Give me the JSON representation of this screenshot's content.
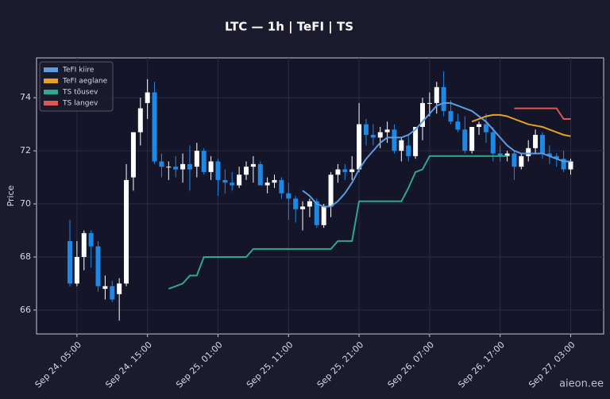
{
  "chart_data": {
    "type": "candlestick",
    "title": "LTC — 1h  |  TeFI  |  TS",
    "ylabel": "Price",
    "watermark": "aieon.ee",
    "up_color": "#ffffff",
    "down_color": "#1e88e5",
    "grid": true,
    "legend": "upper left",
    "x": [
      "Sep 24, 04:00",
      "Sep 24, 05:00",
      "Sep 24, 06:00",
      "Sep 24, 07:00",
      "Sep 24, 08:00",
      "Sep 24, 09:00",
      "Sep 24, 10:00",
      "Sep 24, 11:00",
      "Sep 24, 12:00",
      "Sep 24, 13:00",
      "Sep 24, 14:00",
      "Sep 24, 15:00",
      "Sep 24, 16:00",
      "Sep 24, 17:00",
      "Sep 24, 18:00",
      "Sep 24, 19:00",
      "Sep 24, 20:00",
      "Sep 24, 21:00",
      "Sep 24, 22:00",
      "Sep 24, 23:00",
      "Sep 25, 00:00",
      "Sep 25, 01:00",
      "Sep 25, 02:00",
      "Sep 25, 03:00",
      "Sep 25, 04:00",
      "Sep 25, 05:00",
      "Sep 25, 06:00",
      "Sep 25, 07:00",
      "Sep 25, 08:00",
      "Sep 25, 09:00",
      "Sep 25, 10:00",
      "Sep 25, 11:00",
      "Sep 25, 12:00",
      "Sep 25, 13:00",
      "Sep 25, 14:00",
      "Sep 25, 15:00",
      "Sep 25, 16:00",
      "Sep 25, 17:00",
      "Sep 25, 18:00",
      "Sep 25, 19:00",
      "Sep 25, 20:00",
      "Sep 25, 21:00",
      "Sep 25, 22:00",
      "Sep 25, 23:00",
      "Sep 26, 00:00",
      "Sep 26, 01:00",
      "Sep 26, 02:00",
      "Sep 26, 03:00",
      "Sep 26, 04:00",
      "Sep 26, 05:00",
      "Sep 26, 06:00",
      "Sep 26, 07:00",
      "Sep 26, 08:00",
      "Sep 26, 09:00",
      "Sep 26, 10:00",
      "Sep 26, 11:00",
      "Sep 26, 12:00",
      "Sep 26, 13:00",
      "Sep 26, 14:00",
      "Sep 26, 15:00",
      "Sep 26, 16:00",
      "Sep 26, 17:00",
      "Sep 26, 18:00",
      "Sep 26, 19:00",
      "Sep 26, 20:00",
      "Sep 26, 21:00",
      "Sep 26, 22:00",
      "Sep 26, 23:00",
      "Sep 27, 00:00",
      "Sep 27, 01:00",
      "Sep 27, 02:00",
      "Sep 27, 03:00"
    ],
    "open": [
      68.6,
      67.0,
      68.0,
      68.9,
      68.4,
      66.8,
      66.9,
      66.6,
      67.0,
      71.0,
      72.7,
      73.8,
      74.2,
      71.6,
      71.4,
      71.4,
      71.3,
      71.5,
      71.4,
      72.0,
      71.2,
      71.6,
      70.9,
      70.8,
      70.7,
      71.1,
      71.4,
      71.5,
      70.7,
      70.8,
      70.9,
      70.4,
      70.2,
      69.8,
      69.9,
      70.1,
      69.2,
      69.9,
      71.1,
      71.3,
      71.2,
      71.3,
      73.0,
      72.6,
      72.5,
      72.7,
      72.8,
      72.0,
      72.2,
      71.8,
      72.9,
      73.8,
      73.8,
      74.4,
      73.5,
      73.1,
      72.8,
      72.0,
      72.9,
      73.0,
      72.7,
      71.9,
      71.8,
      71.9,
      71.4,
      71.8,
      72.1,
      72.6,
      71.9,
      71.8,
      71.7,
      71.3
    ],
    "high": [
      69.4,
      68.6,
      69.0,
      69.0,
      68.6,
      67.3,
      67.1,
      67.2,
      71.5,
      72.7,
      74.0,
      74.7,
      74.6,
      71.9,
      71.6,
      71.8,
      71.9,
      72.2,
      72.3,
      72.1,
      71.8,
      71.7,
      71.3,
      71.2,
      71.4,
      71.6,
      71.8,
      71.6,
      71.0,
      71.1,
      71.0,
      70.8,
      70.3,
      70.1,
      70.2,
      70.2,
      70.0,
      71.2,
      71.5,
      71.5,
      71.8,
      73.8,
      73.2,
      73.0,
      72.9,
      73.1,
      73.0,
      72.5,
      72.6,
      72.9,
      74.0,
      74.2,
      74.6,
      75.0,
      73.9,
      73.4,
      73.3,
      72.9,
      73.1,
      73.4,
      72.9,
      72.2,
      72.0,
      72.0,
      71.9,
      72.4,
      72.8,
      72.7,
      72.2,
      71.9,
      72.0,
      71.7
    ],
    "low": [
      66.9,
      66.9,
      67.5,
      67.6,
      66.7,
      66.4,
      66.3,
      65.6,
      66.9,
      70.5,
      72.2,
      73.2,
      71.5,
      71.0,
      70.9,
      71.0,
      70.8,
      70.5,
      71.0,
      71.1,
      70.9,
      70.3,
      70.4,
      70.5,
      70.6,
      70.9,
      70.8,
      70.7,
      70.4,
      70.6,
      70.2,
      69.4,
      69.3,
      69.0,
      69.5,
      69.1,
      69.1,
      69.5,
      70.8,
      70.9,
      70.9,
      71.2,
      72.2,
      72.2,
      72.1,
      72.3,
      71.9,
      71.6,
      71.6,
      71.7,
      72.4,
      73.3,
      73.4,
      73.3,
      73.0,
      72.7,
      71.9,
      71.9,
      72.6,
      72.3,
      71.6,
      71.6,
      71.6,
      70.9,
      71.3,
      71.6,
      71.9,
      71.7,
      71.5,
      71.4,
      71.2,
      71.1
    ],
    "close": [
      67.0,
      68.0,
      68.9,
      68.4,
      66.9,
      66.9,
      66.4,
      67.0,
      70.9,
      72.7,
      73.6,
      74.2,
      71.6,
      71.4,
      71.4,
      71.3,
      71.5,
      71.3,
      72.0,
      71.2,
      71.6,
      70.9,
      70.8,
      70.7,
      71.1,
      71.4,
      71.5,
      70.7,
      70.8,
      70.9,
      70.4,
      70.2,
      69.8,
      69.9,
      70.1,
      69.2,
      69.9,
      71.1,
      71.3,
      71.2,
      71.3,
      73.0,
      72.6,
      72.5,
      72.7,
      72.8,
      72.0,
      72.4,
      71.8,
      72.9,
      73.8,
      73.8,
      74.4,
      73.5,
      73.1,
      72.8,
      72.0,
      72.9,
      73.0,
      72.7,
      71.9,
      71.8,
      71.9,
      71.4,
      71.8,
      72.1,
      72.6,
      71.9,
      71.8,
      71.7,
      71.3,
      71.6
    ],
    "series": [
      {
        "name": "TeFI kiire",
        "color": "#5b9be0",
        "values": [
          null,
          null,
          null,
          null,
          null,
          null,
          null,
          null,
          null,
          null,
          null,
          null,
          null,
          null,
          null,
          null,
          null,
          null,
          null,
          null,
          null,
          null,
          null,
          null,
          null,
          null,
          null,
          null,
          null,
          null,
          null,
          null,
          null,
          70.5,
          70.3,
          70.0,
          69.9,
          69.9,
          70.1,
          70.4,
          70.8,
          71.3,
          71.7,
          72.0,
          72.3,
          72.5,
          72.5,
          72.5,
          72.6,
          72.8,
          73.1,
          73.4,
          73.7,
          73.8,
          73.8,
          73.7,
          73.6,
          73.5,
          73.3,
          73.1,
          72.8,
          72.5,
          72.2,
          72.0,
          71.9,
          71.9,
          71.9,
          71.9,
          71.8,
          71.7,
          71.6,
          71.6
        ]
      },
      {
        "name": "TeFI aeglane",
        "color": "#e6a126",
        "values": [
          null,
          null,
          null,
          null,
          null,
          null,
          null,
          null,
          null,
          null,
          null,
          null,
          null,
          null,
          null,
          null,
          null,
          null,
          null,
          null,
          null,
          null,
          null,
          null,
          null,
          null,
          null,
          null,
          null,
          null,
          null,
          null,
          null,
          null,
          null,
          null,
          null,
          null,
          null,
          null,
          null,
          null,
          null,
          null,
          null,
          null,
          null,
          null,
          null,
          null,
          null,
          null,
          null,
          null,
          null,
          null,
          null,
          73.1,
          73.2,
          73.3,
          73.35,
          73.35,
          73.3,
          73.2,
          73.1,
          73.0,
          72.95,
          72.9,
          72.8,
          72.7,
          72.6,
          72.55
        ]
      },
      {
        "name": "TS tõusev",
        "color": "#2fa889",
        "values": [
          null,
          null,
          null,
          null,
          null,
          null,
          null,
          null,
          null,
          null,
          null,
          null,
          null,
          null,
          66.8,
          66.9,
          67.0,
          67.3,
          67.3,
          68.0,
          68.0,
          68.0,
          68.0,
          68.0,
          68.0,
          68.0,
          68.3,
          68.3,
          68.3,
          68.3,
          68.3,
          68.3,
          68.3,
          68.3,
          68.3,
          68.3,
          68.3,
          68.3,
          68.6,
          68.6,
          68.6,
          70.1,
          70.1,
          70.1,
          70.1,
          70.1,
          70.1,
          70.1,
          70.6,
          71.2,
          71.3,
          71.8,
          71.8,
          71.8,
          71.8,
          71.8,
          71.8,
          71.8,
          71.8,
          71.8,
          71.8,
          71.8,
          71.8,
          null,
          null,
          null,
          null,
          null,
          null,
          null,
          null,
          null
        ]
      },
      {
        "name": "TS langev",
        "color": "#e05555",
        "values": [
          null,
          null,
          null,
          null,
          null,
          null,
          null,
          null,
          null,
          null,
          null,
          null,
          null,
          null,
          null,
          null,
          null,
          null,
          null,
          null,
          null,
          null,
          null,
          null,
          null,
          null,
          null,
          null,
          null,
          null,
          null,
          null,
          null,
          null,
          null,
          null,
          null,
          null,
          null,
          null,
          null,
          null,
          null,
          null,
          null,
          null,
          null,
          null,
          null,
          null,
          null,
          null,
          null,
          null,
          null,
          null,
          null,
          null,
          null,
          null,
          null,
          null,
          null,
          73.6,
          73.6,
          73.6,
          73.6,
          73.6,
          73.6,
          73.6,
          73.2,
          73.2
        ]
      }
    ],
    "xticks": [
      "Sep 24, 05:00",
      "Sep 24, 15:00",
      "Sep 25, 01:00",
      "Sep 25, 11:00",
      "Sep 25, 21:00",
      "Sep 26, 07:00",
      "Sep 26, 17:00",
      "Sep 27, 03:00"
    ],
    "ylim": [
      65.1,
      75.5
    ],
    "yticks": [
      66,
      68,
      70,
      72,
      74
    ]
  }
}
